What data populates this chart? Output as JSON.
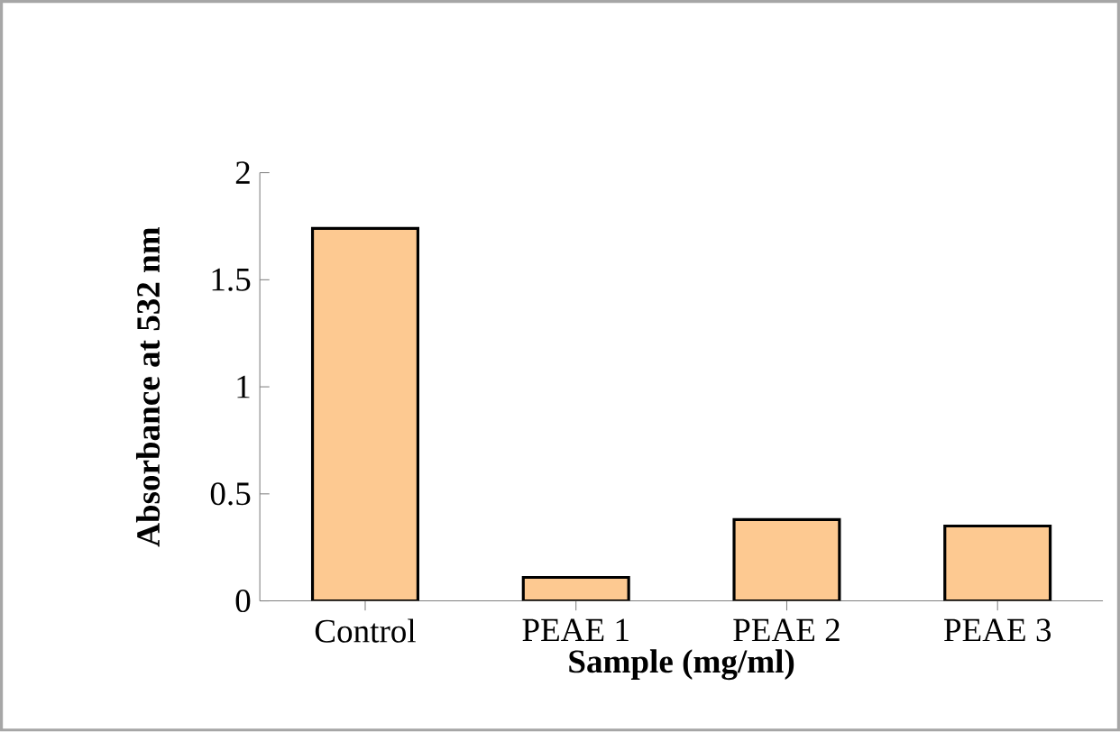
{
  "chart_data": {
    "type": "bar",
    "xlabel": "Sample (mg/ml)",
    "ylabel": "Absorbance at 532 nm",
    "categories": [
      "Control",
      "PEAE 1",
      "PEAE 2",
      "PEAE 3"
    ],
    "values": [
      1.74,
      0.11,
      0.38,
      0.35
    ],
    "color": "#fdc991",
    "ylim": [
      0,
      2
    ],
    "yticks": [
      0,
      0.5,
      1,
      1.5,
      2
    ]
  }
}
